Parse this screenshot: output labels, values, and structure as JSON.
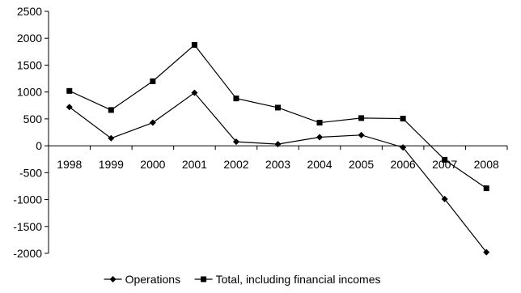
{
  "chart_data": {
    "type": "line",
    "title": "",
    "xlabel": "",
    "ylabel": "",
    "categories": [
      "1998",
      "1999",
      "2000",
      "2001",
      "2002",
      "2003",
      "2004",
      "2005",
      "2006",
      "2007",
      "2008"
    ],
    "ylim": [
      -2000,
      2500
    ],
    "y_ticks": [
      2500,
      2000,
      1500,
      1000,
      500,
      0,
      -500,
      -1000,
      -1500,
      -2000
    ],
    "y_tick_labels": [
      "2500",
      "2000",
      "1500",
      "1000",
      "500",
      "0",
      "-500",
      "-1000",
      "-1500",
      "-2000"
    ],
    "grid": false,
    "legend_position": "bottom",
    "series": [
      {
        "name": "Operations",
        "marker": "diamond",
        "color": "#000000",
        "values": [
          720,
          140,
          430,
          985,
          75,
          30,
          160,
          200,
          -30,
          -990,
          -1980
        ]
      },
      {
        "name": "Total, including financial incomes",
        "marker": "square",
        "color": "#000000",
        "values": [
          1020,
          665,
          1200,
          1875,
          880,
          710,
          430,
          515,
          505,
          -260,
          -790
        ]
      }
    ]
  }
}
